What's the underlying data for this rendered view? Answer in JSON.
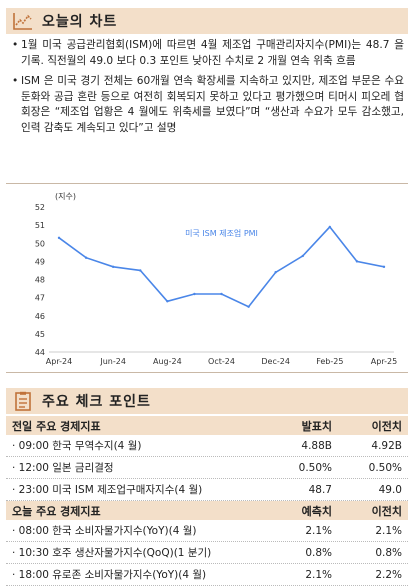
{
  "chart_section": {
    "title": "오늘의 차트",
    "icon": "trend-chart-icon"
  },
  "bullets": [
    "1월 미국 공급관리협회(ISM)에 따르면 4월 제조업 구매관리자지수(PMI)는 48.7 을 기록. 직전월의 49.0 보다 0.3 포인트 낮아진 수치로 2 개월 연속 위축 흐름",
    "ISM 은 미국 경기 전체는 60개월 연속 확장세를 지속하고 있지만, 제조업 부문은 수요 둔화와 공급 혼란 등으로 여전히 회복되지 못하고 있다고 평가했으며 티머시 피오레 협회장은 “제조업 업황은 4 월에도 위축세를 보였다”며 “생산과 수요가 모두 감소했고, 인력 감축도 계속되고 있다”고 설명"
  ],
  "chart_data": {
    "type": "line",
    "ylabel": "(지수)",
    "series": [
      {
        "name": "미국 ISM 제조업 PMI",
        "color": "#4a86e8",
        "values": [
          50.3,
          49.2,
          48.7,
          48.5,
          46.8,
          47.2,
          47.2,
          46.5,
          48.4,
          49.3,
          50.9,
          49.0,
          48.7
        ]
      }
    ],
    "x": [
      "Apr-24",
      "May-24",
      "Jun-24",
      "Jul-24",
      "Aug-24",
      "Sep-24",
      "Oct-24",
      "Nov-24",
      "Dec-24",
      "Jan-25",
      "Feb-25",
      "Mar-25",
      "Apr-25"
    ],
    "xticks": [
      "Apr-24",
      "Jun-24",
      "Aug-24",
      "Oct-24",
      "Dec-24",
      "Feb-25",
      "Apr-25"
    ],
    "yticks": [
      "44",
      "45",
      "46",
      "47",
      "48",
      "49",
      "50",
      "51",
      "52"
    ],
    "ylim": [
      44,
      52
    ],
    "grid": false,
    "legend": "inline"
  },
  "check_section": {
    "title": "주요 체크 포인트",
    "icon": "checklist-icon"
  },
  "prev_table": {
    "headers": [
      "전일 주요 경제지표",
      "발표치",
      "이전치"
    ],
    "rows": [
      [
        "· 09:00 한국 무역수지(4 월)",
        "4.88B",
        "4.92B"
      ],
      [
        "· 12:00 일본 금리결정",
        "0.50%",
        "0.50%"
      ],
      [
        "· 23:00 미국 ISM 제조업구매자지수(4 월)",
        "48.7",
        "49.0"
      ]
    ]
  },
  "today_table": {
    "headers": [
      "오늘 주요 경제지표",
      "예측치",
      "이전치"
    ],
    "rows": [
      [
        "· 08:00 한국 소비자물가지수(YoY)(4 월)",
        "2.1%",
        "2.1%"
      ],
      [
        "· 10:30 호주 생산자물가지수(QoQ)(1 분기)",
        "0.8%",
        "0.8%"
      ],
      [
        "· 18:00 유로존 소비자물가지수(YoY)(4 월)",
        "2.1%",
        "2.2%"
      ]
    ]
  }
}
